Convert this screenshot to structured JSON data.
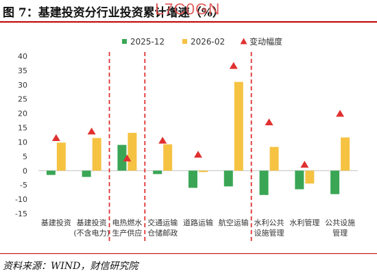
{
  "header": {
    "title": "图 7：基建投资分行业投资累计增速（%）",
    "watermark": "L7C0GN"
  },
  "footer": {
    "source": "资料来源：WIND，财信研究院"
  },
  "colors": {
    "series_2025": "#3aa655",
    "series_2026": "#f5c242",
    "marker": "#e03030",
    "divider": "#e03030"
  },
  "chart_data": {
    "type": "bar",
    "categories": [
      [
        "基建投资"
      ],
      [
        "基建投资",
        "(不含电力)"
      ],
      [
        "电热燃水",
        "生产供应"
      ],
      [
        "交通运输",
        "仓储邮政"
      ],
      [
        "道路运输"
      ],
      [
        "航空运输"
      ],
      [
        "水利公共",
        "设施管理"
      ],
      [
        "水利管理"
      ],
      [
        "公共设施",
        "管理"
      ]
    ],
    "series": [
      {
        "name": "2025-12",
        "type": "bar",
        "values": [
          -1.5,
          -2.2,
          9.0,
          -1.2,
          -6.0,
          -5.5,
          -8.5,
          -6.5,
          -8.2
        ]
      },
      {
        "name": "2026-02",
        "type": "bar",
        "values": [
          9.8,
          11.4,
          13.2,
          9.2,
          -0.5,
          31.0,
          8.3,
          -4.5,
          11.6
        ]
      },
      {
        "name": "变动幅度",
        "type": "marker",
        "values": [
          11.3,
          13.6,
          4.2,
          10.4,
          5.5,
          36.5,
          16.8,
          2.0,
          19.8
        ]
      }
    ],
    "ylim": [
      -15,
      40
    ],
    "yticks": [
      -15,
      -10,
      -5,
      0,
      5,
      10,
      15,
      20,
      25,
      30,
      35,
      40
    ],
    "dividers_after": [
      1,
      2,
      5
    ],
    "legend_position": "top"
  }
}
